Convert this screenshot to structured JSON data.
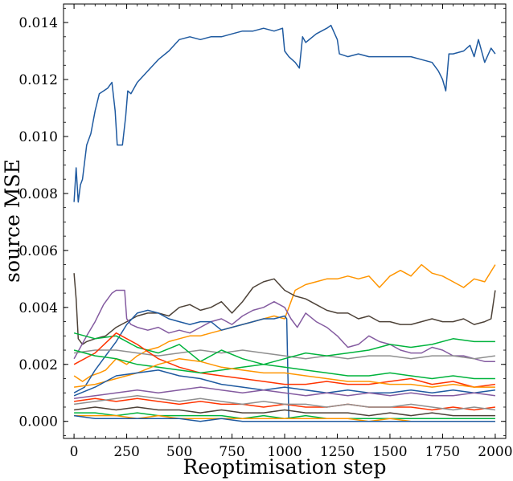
{
  "chart_data": {
    "type": "line",
    "xlabel": "Reoptimisation step",
    "ylabel": "source MSE",
    "xlim": [
      -50,
      2050
    ],
    "ylim": [
      -0.0006,
      0.01465
    ],
    "xticks": [
      0,
      250,
      500,
      750,
      1000,
      1250,
      1500,
      1750,
      2000
    ],
    "xtick_labels": [
      "0",
      "250",
      "500",
      "750",
      "1000",
      "1250",
      "1500",
      "1750",
      "2000"
    ],
    "yticks": [
      0.0,
      0.002,
      0.004,
      0.006,
      0.008,
      0.01,
      0.012,
      0.014
    ],
    "ytick_labels": [
      "0.000",
      "0.002",
      "0.004",
      "0.006",
      "0.008",
      "0.010",
      "0.012",
      "0.014"
    ],
    "grid": false,
    "legend": "none",
    "series": [
      {
        "color": "#1f5aa0",
        "x": [
          0,
          10,
          20,
          30,
          40,
          60,
          80,
          100,
          120,
          140,
          160,
          180,
          195,
          205,
          215,
          230,
          245,
          255,
          270,
          300,
          350,
          400,
          450,
          500,
          550,
          600,
          650,
          700,
          750,
          800,
          850,
          900,
          950,
          990,
          1000,
          1020,
          1050,
          1070,
          1085,
          1100,
          1150,
          1200,
          1220,
          1250,
          1260,
          1300,
          1350,
          1400,
          1450,
          1500,
          1550,
          1600,
          1650,
          1700,
          1730,
          1750,
          1765,
          1780,
          1800,
          1850,
          1880,
          1900,
          1920,
          1950,
          1980,
          2000
        ],
        "y": [
          0.0077,
          0.0089,
          0.0077,
          0.0083,
          0.0085,
          0.0097,
          0.0101,
          0.0109,
          0.0115,
          0.0116,
          0.0117,
          0.0119,
          0.0109,
          0.0097,
          0.0097,
          0.0097,
          0.0107,
          0.0116,
          0.0115,
          0.0119,
          0.0123,
          0.0127,
          0.013,
          0.0134,
          0.0135,
          0.0134,
          0.0135,
          0.0135,
          0.0136,
          0.0137,
          0.0137,
          0.0138,
          0.0137,
          0.0138,
          0.013,
          0.0128,
          0.0126,
          0.0124,
          0.0135,
          0.0133,
          0.0136,
          0.0138,
          0.0139,
          0.0134,
          0.0129,
          0.0128,
          0.0129,
          0.0128,
          0.0128,
          0.0128,
          0.0128,
          0.0128,
          0.0127,
          0.0126,
          0.0123,
          0.012,
          0.0116,
          0.0129,
          0.0129,
          0.013,
          0.0132,
          0.0128,
          0.0134,
          0.0126,
          0.0131,
          0.0129
        ]
      },
      {
        "color": "#ff9500",
        "x": [
          0,
          40,
          80,
          120,
          150,
          200,
          250,
          300,
          350,
          400,
          450,
          500,
          550,
          600,
          650,
          700,
          750,
          800,
          850,
          900,
          950,
          1000,
          1050,
          1100,
          1150,
          1200,
          1250,
          1300,
          1350,
          1400,
          1450,
          1500,
          1550,
          1600,
          1650,
          1700,
          1750,
          1800,
          1850,
          1900,
          1950,
          2000
        ],
        "y": [
          0.0016,
          0.0014,
          0.0016,
          0.0017,
          0.0018,
          0.0022,
          0.002,
          0.0023,
          0.0025,
          0.0026,
          0.0028,
          0.0029,
          0.003,
          0.003,
          0.0031,
          0.0032,
          0.0033,
          0.0034,
          0.0035,
          0.0036,
          0.0037,
          0.0036,
          0.0046,
          0.0048,
          0.0049,
          0.005,
          0.005,
          0.0051,
          0.005,
          0.0051,
          0.0047,
          0.0051,
          0.0053,
          0.0051,
          0.0055,
          0.0052,
          0.0051,
          0.0049,
          0.0047,
          0.005,
          0.0049,
          0.0055
        ]
      },
      {
        "color": "#4d4238",
        "x": [
          0,
          10,
          20,
          40,
          60,
          100,
          150,
          200,
          250,
          300,
          350,
          400,
          450,
          500,
          550,
          600,
          650,
          700,
          750,
          800,
          850,
          900,
          950,
          1000,
          1050,
          1100,
          1150,
          1200,
          1250,
          1300,
          1350,
          1400,
          1450,
          1500,
          1550,
          1600,
          1650,
          1700,
          1750,
          1800,
          1850,
          1900,
          1950,
          1980,
          2000
        ],
        "y": [
          0.0052,
          0.0043,
          0.0029,
          0.0027,
          0.0028,
          0.0029,
          0.003,
          0.0033,
          0.0035,
          0.0037,
          0.0038,
          0.0038,
          0.0037,
          0.004,
          0.0041,
          0.0039,
          0.004,
          0.0042,
          0.0038,
          0.0042,
          0.0047,
          0.0049,
          0.005,
          0.0046,
          0.0044,
          0.0043,
          0.0041,
          0.0039,
          0.0038,
          0.0038,
          0.0036,
          0.0037,
          0.0035,
          0.0035,
          0.0034,
          0.0034,
          0.0035,
          0.0036,
          0.0035,
          0.0035,
          0.0036,
          0.0034,
          0.0035,
          0.0036,
          0.0046
        ]
      },
      {
        "color": "#845ba0",
        "x": [
          0,
          30,
          60,
          100,
          140,
          180,
          200,
          240,
          250,
          270,
          300,
          350,
          400,
          450,
          500,
          550,
          600,
          650,
          700,
          750,
          800,
          850,
          900,
          950,
          1000,
          1030,
          1060,
          1100,
          1150,
          1200,
          1250,
          1300,
          1350,
          1400,
          1450,
          1500,
          1550,
          1600,
          1650,
          1700,
          1750,
          1800,
          1850,
          1900,
          1950,
          2000
        ],
        "y": [
          0.0022,
          0.0026,
          0.003,
          0.0035,
          0.0041,
          0.0045,
          0.0046,
          0.0046,
          0.0036,
          0.0034,
          0.0033,
          0.0032,
          0.0033,
          0.0031,
          0.0032,
          0.0031,
          0.0033,
          0.0035,
          0.0036,
          0.0034,
          0.0037,
          0.0039,
          0.004,
          0.0042,
          0.004,
          0.0036,
          0.0033,
          0.0038,
          0.0035,
          0.0033,
          0.003,
          0.0026,
          0.0027,
          0.003,
          0.0028,
          0.0027,
          0.0025,
          0.0024,
          0.0024,
          0.0026,
          0.0025,
          0.0023,
          0.0023,
          0.0022,
          0.0021,
          0.0021
        ]
      },
      {
        "color": "#1f5aa0",
        "x": [
          0,
          50,
          100,
          150,
          200,
          250,
          300,
          350,
          400,
          450,
          500,
          550,
          600,
          650,
          700,
          750,
          800,
          850,
          900,
          950,
          1000,
          1010,
          1020
        ],
        "y": [
          0.001,
          0.0012,
          0.0018,
          0.0023,
          0.0028,
          0.0034,
          0.0038,
          0.0039,
          0.0038,
          0.0036,
          0.0035,
          0.0034,
          0.0035,
          0.0035,
          0.0032,
          0.0033,
          0.0034,
          0.0035,
          0.0036,
          0.0036,
          0.0037,
          0.0036,
          0.0001
        ]
      },
      {
        "color": "#8f8f8f",
        "x": [
          0,
          100,
          200,
          300,
          400,
          500,
          600,
          700,
          800,
          900,
          1000,
          1100,
          1200,
          1300,
          1400,
          1500,
          1600,
          1700,
          1800,
          1900,
          2000
        ],
        "y": [
          0.0024,
          0.0025,
          0.0025,
          0.0024,
          0.0023,
          0.0024,
          0.0025,
          0.0024,
          0.0025,
          0.0024,
          0.0023,
          0.0022,
          0.0023,
          0.0022,
          0.0023,
          0.0023,
          0.0022,
          0.0023,
          0.0023,
          0.0022,
          0.0023
        ]
      },
      {
        "color": "#00b33c",
        "x": [
          0,
          100,
          200,
          300,
          400,
          500,
          600,
          700,
          800,
          900,
          1000,
          1100,
          1200,
          1300,
          1400,
          1500,
          1600,
          1700,
          1800,
          1900,
          2000
        ],
        "y": [
          0.0031,
          0.0029,
          0.003,
          0.0026,
          0.0024,
          0.0027,
          0.0021,
          0.0025,
          0.0022,
          0.002,
          0.0022,
          0.0024,
          0.0023,
          0.0024,
          0.0025,
          0.0027,
          0.0026,
          0.0027,
          0.0029,
          0.0028,
          0.0028
        ]
      },
      {
        "color": "#ff3300",
        "x": [
          0,
          100,
          200,
          300,
          400,
          500,
          600,
          700,
          800,
          900,
          1000,
          1100,
          1200,
          1300,
          1400,
          1500,
          1600,
          1700,
          1800,
          1900,
          2000
        ],
        "y": [
          0.002,
          0.0024,
          0.0031,
          0.0027,
          0.0022,
          0.0019,
          0.0017,
          0.0016,
          0.0015,
          0.0014,
          0.0013,
          0.0013,
          0.0014,
          0.0013,
          0.0013,
          0.0014,
          0.0015,
          0.0013,
          0.0014,
          0.0012,
          0.0013
        ]
      },
      {
        "color": "#00b33c",
        "x": [
          0,
          100,
          200,
          300,
          400,
          500,
          600,
          700,
          800,
          900,
          1000,
          1100,
          1200,
          1300,
          1400,
          1500,
          1600,
          1700,
          1800,
          1900,
          2000
        ],
        "y": [
          0.0025,
          0.0023,
          0.0022,
          0.002,
          0.0019,
          0.0018,
          0.0017,
          0.0018,
          0.0019,
          0.002,
          0.0019,
          0.0018,
          0.0017,
          0.0016,
          0.0016,
          0.0017,
          0.0016,
          0.0015,
          0.0016,
          0.0015,
          0.0015
        ]
      },
      {
        "color": "#ff9500",
        "x": [
          0,
          100,
          200,
          300,
          400,
          500,
          600,
          700,
          800,
          900,
          1000,
          1100,
          1200,
          1300,
          1400,
          1500,
          1600,
          1700,
          1800,
          1900,
          2000
        ],
        "y": [
          0.0012,
          0.0013,
          0.0015,
          0.0017,
          0.002,
          0.0022,
          0.0021,
          0.0019,
          0.0018,
          0.0017,
          0.0017,
          0.0016,
          0.0015,
          0.0014,
          0.0014,
          0.0013,
          0.0013,
          0.0012,
          0.0013,
          0.0012,
          0.0012
        ]
      },
      {
        "color": "#1f5aa0",
        "x": [
          0,
          100,
          200,
          300,
          400,
          500,
          600,
          700,
          800,
          900,
          1000,
          1100,
          1200,
          1300,
          1400,
          1500,
          1600,
          1700,
          1800,
          1900,
          2000
        ],
        "y": [
          0.0009,
          0.0012,
          0.0016,
          0.0017,
          0.0018,
          0.0016,
          0.0015,
          0.0013,
          0.0012,
          0.0011,
          0.0012,
          0.0011,
          0.001,
          0.0011,
          0.001,
          0.001,
          0.0011,
          0.001,
          0.0011,
          0.001,
          0.0011
        ]
      },
      {
        "color": "#845ba0",
        "x": [
          0,
          100,
          200,
          300,
          400,
          500,
          600,
          700,
          800,
          900,
          1000,
          1100,
          1200,
          1300,
          1400,
          1500,
          1600,
          1700,
          1800,
          1900,
          2000
        ],
        "y": [
          0.0008,
          0.0009,
          0.001,
          0.0011,
          0.001,
          0.0011,
          0.0012,
          0.0011,
          0.001,
          0.0011,
          0.001,
          0.0009,
          0.001,
          0.0009,
          0.001,
          0.0009,
          0.001,
          0.0009,
          0.0009,
          0.001,
          0.0009
        ]
      },
      {
        "color": "#ff3300",
        "x": [
          0,
          100,
          200,
          300,
          400,
          500,
          600,
          700,
          800,
          900,
          1000,
          1100,
          1200,
          1300,
          1400,
          1500,
          1600,
          1700,
          1800,
          1900,
          2000
        ],
        "y": [
          0.0007,
          0.0008,
          0.0007,
          0.0008,
          0.0007,
          0.0006,
          0.0007,
          0.0006,
          0.0006,
          0.0005,
          0.0006,
          0.0005,
          0.0005,
          0.0006,
          0.0005,
          0.0005,
          0.0005,
          0.0004,
          0.0005,
          0.0004,
          0.0005
        ]
      },
      {
        "color": "#8f8f8f",
        "x": [
          0,
          100,
          200,
          300,
          400,
          500,
          600,
          700,
          800,
          900,
          1000,
          1100,
          1200,
          1300,
          1400,
          1500,
          1600,
          1700,
          1800,
          1900,
          2000
        ],
        "y": [
          0.0006,
          0.0007,
          0.0008,
          0.0009,
          0.0008,
          0.0007,
          0.0008,
          0.0007,
          0.0006,
          0.0007,
          0.0006,
          0.0006,
          0.0005,
          0.0006,
          0.0005,
          0.0005,
          0.0006,
          0.0005,
          0.0004,
          0.0005,
          0.0004
        ]
      },
      {
        "color": "#4d4238",
        "x": [
          0,
          100,
          200,
          300,
          400,
          500,
          600,
          700,
          800,
          900,
          1000,
          1100,
          1200,
          1300,
          1400,
          1500,
          1600,
          1700,
          1800,
          1900,
          2000
        ],
        "y": [
          0.0004,
          0.0005,
          0.0004,
          0.0005,
          0.0004,
          0.0004,
          0.0003,
          0.0004,
          0.0003,
          0.0003,
          0.0004,
          0.0003,
          0.0003,
          0.0003,
          0.0002,
          0.0003,
          0.0002,
          0.0003,
          0.0002,
          0.0002,
          0.0002
        ]
      },
      {
        "color": "#00b33c",
        "x": [
          0,
          100,
          200,
          300,
          400,
          500,
          600,
          700,
          800,
          900,
          1000,
          1100,
          1200,
          1300,
          1400,
          1500,
          1600,
          1700,
          1800,
          1900,
          2000
        ],
        "y": [
          0.0003,
          0.0003,
          0.0002,
          0.0003,
          0.0002,
          0.0002,
          0.0002,
          0.0002,
          0.0001,
          0.0002,
          0.0001,
          0.0002,
          0.0001,
          0.0001,
          0.0001,
          0.0001,
          0.0001,
          0.0001,
          0.0001,
          0.0001,
          0.0001
        ]
      },
      {
        "color": "#ff9500",
        "x": [
          0,
          100,
          200,
          300,
          400,
          500,
          600,
          700,
          800,
          900,
          1000,
          1100,
          1200,
          1300,
          1400,
          1500,
          1600,
          1700,
          1800,
          1900,
          2000
        ],
        "y": [
          0.0002,
          0.0002,
          0.0002,
          0.0001,
          0.0002,
          0.0001,
          0.0001,
          0.0001,
          0.0001,
          0.0001,
          0.0001,
          0.0001,
          0.0001,
          0.0001,
          0.0,
          0.0001,
          0.0,
          0.0,
          0.0,
          0.0,
          0.0
        ]
      },
      {
        "color": "#1f5aa0",
        "x": [
          0,
          100,
          200,
          300,
          400,
          500,
          600,
          700,
          800,
          900,
          1000,
          1100,
          1200,
          1300,
          1400,
          1500,
          1600,
          1700,
          1800,
          1900,
          2000
        ],
        "y": [
          0.0002,
          0.0001,
          0.0001,
          0.0001,
          0.0001,
          0.0001,
          0.0,
          0.0001,
          0.0,
          0.0,
          0.0,
          0.0,
          0.0,
          0.0,
          0.0,
          0.0,
          0.0,
          0.0,
          0.0,
          0.0,
          0.0
        ]
      }
    ]
  }
}
